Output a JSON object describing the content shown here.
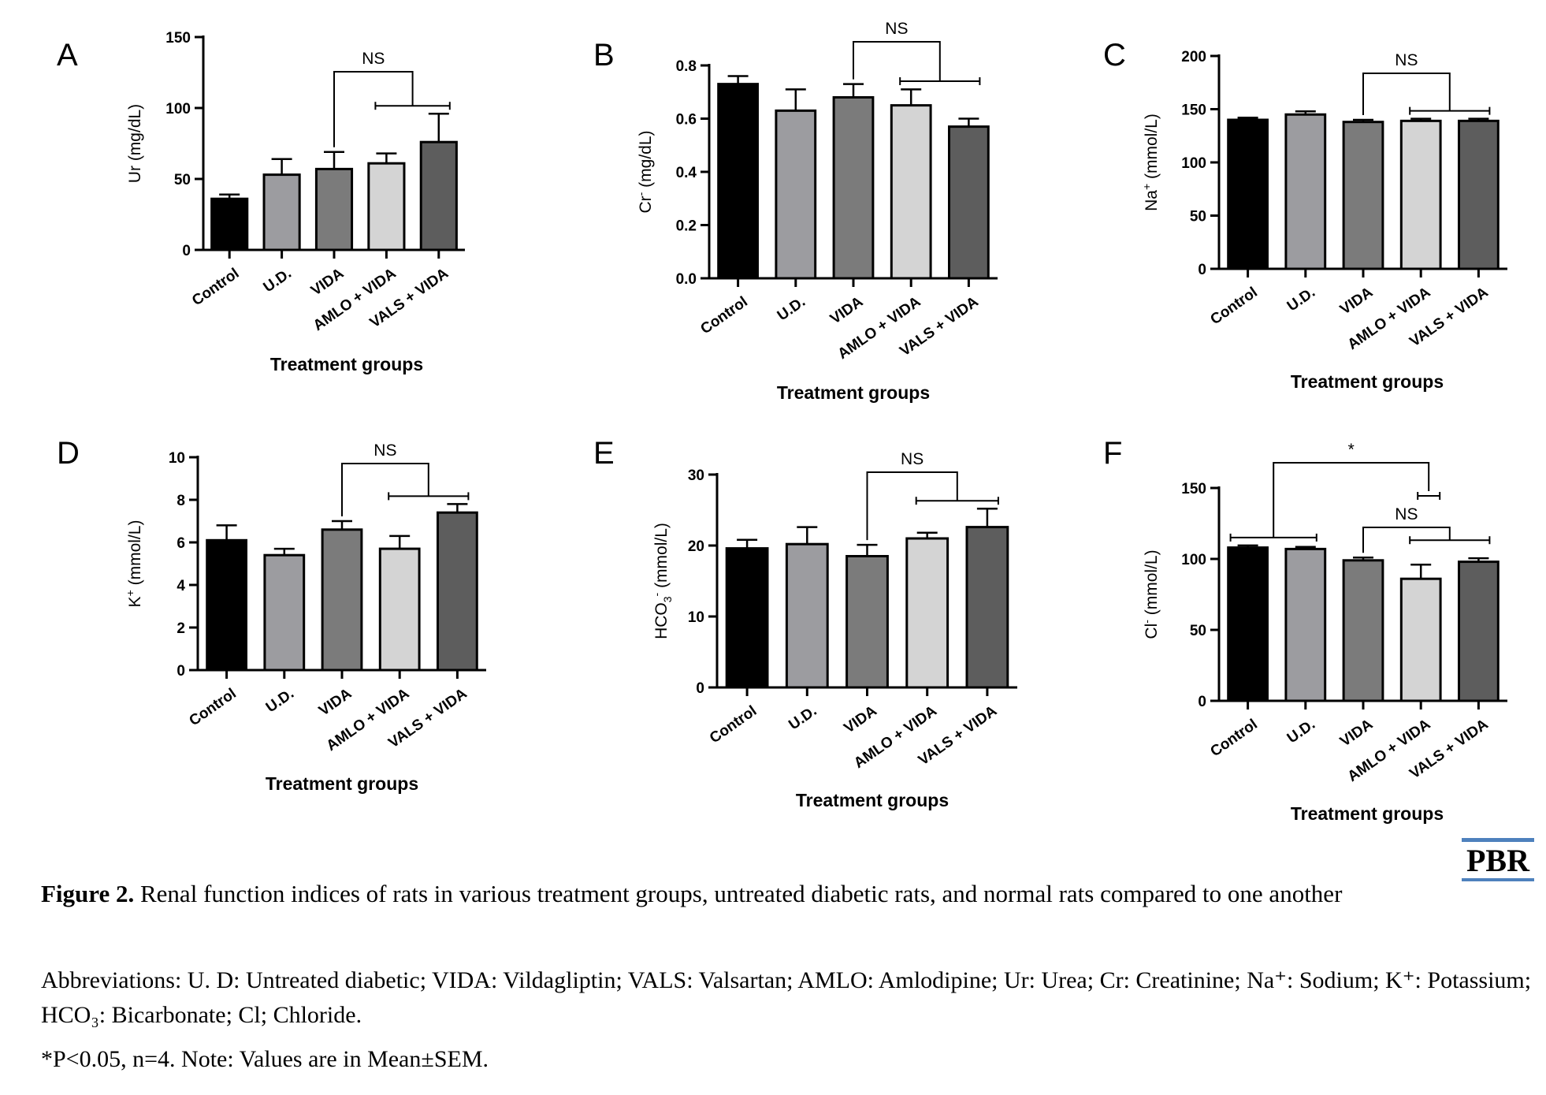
{
  "figure": {
    "caption_label": "Figure 2.",
    "caption_text": " Renal function indices of rats in various treatment groups, untreated diabetic rats, and normal rats compared to one another",
    "abbreviations": "Abbreviations: U. D: Untreated diabetic; VIDA: Vildagliptin; VALS: Valsartan; AMLO: Amlodipine; Ur: Urea; Cr: Creatinine; Na⁺: Sodium; K⁺: Potassium; HCO₃: Bicarbonate; Cl; Chloride.",
    "note": "*P<0.05, n=4. Note: Values are in Mean±SEM.",
    "logo_text": "PBR"
  },
  "colors": {
    "bars": [
      "#000000",
      "#9c9ca0",
      "#7b7b7b",
      "#d4d4d4",
      "#5d5d5d"
    ],
    "logo_accent": "#4e81bd"
  },
  "chart_data": [
    {
      "panel": "A",
      "type": "bar",
      "categories": [
        "Control",
        "U.D.",
        "VIDA",
        "AMLO + VIDA",
        "VALS + VIDA"
      ],
      "values": [
        36,
        53,
        57,
        61,
        76
      ],
      "errors": [
        3,
        11,
        12,
        7,
        20
      ],
      "ylabel": "Ur (mg/dL)",
      "xlabel": "Treatment groups",
      "ylim": [
        0,
        150
      ],
      "yticks": [
        0,
        50,
        100,
        150
      ],
      "ytick_labels": [
        "0",
        "50",
        "100",
        "150"
      ],
      "significance": [
        {
          "label": "NS",
          "from": 2,
          "to_bracket": [
            3,
            4
          ]
        }
      ]
    },
    {
      "panel": "B",
      "type": "bar",
      "categories": [
        "Control",
        "U.D.",
        "VIDA",
        "AMLO + VIDA",
        "VALS + VIDA"
      ],
      "values": [
        0.73,
        0.63,
        0.68,
        0.65,
        0.57
      ],
      "errors": [
        0.03,
        0.08,
        0.05,
        0.06,
        0.03
      ],
      "ylabel": "Cr (mg/dL)",
      "ylabel_sup": "-",
      "xlabel": "Treatment groups",
      "ylim": [
        0,
        0.8
      ],
      "yticks": [
        0,
        0.2,
        0.4,
        0.6,
        0.8
      ],
      "ytick_labels": [
        "0.0",
        "0.2",
        "0.4",
        "0.6",
        "0.8"
      ],
      "significance": [
        {
          "label": "NS",
          "from": 2,
          "to_bracket": [
            3,
            4
          ]
        }
      ]
    },
    {
      "panel": "C",
      "type": "bar",
      "categories": [
        "Control",
        "U.D.",
        "VIDA",
        "AMLO + VIDA",
        "VALS + VIDA"
      ],
      "values": [
        140,
        145,
        138,
        139,
        139
      ],
      "errors": [
        2,
        3,
        2,
        2,
        2
      ],
      "ylabel": "Na (mmol/L)",
      "ylabel_sup": "+",
      "xlabel": "Treatment groups",
      "ylim": [
        0,
        200
      ],
      "yticks": [
        0,
        50,
        100,
        150,
        200
      ],
      "ytick_labels": [
        "0",
        "50",
        "100",
        "150",
        "200"
      ],
      "significance": [
        {
          "label": "NS",
          "from": 2,
          "to_bracket": [
            3,
            4
          ]
        }
      ]
    },
    {
      "panel": "D",
      "type": "bar",
      "categories": [
        "Control",
        "U.D.",
        "VIDA",
        "AMLO + VIDA",
        "VALS + VIDA"
      ],
      "values": [
        6.1,
        5.4,
        6.6,
        5.7,
        7.4
      ],
      "errors": [
        0.7,
        0.3,
        0.4,
        0.6,
        0.4
      ],
      "ylabel": "K (mmol/L)",
      "ylabel_sup": "+",
      "xlabel": "Treatment groups",
      "ylim": [
        0,
        10
      ],
      "yticks": [
        0,
        2,
        4,
        6,
        8,
        10
      ],
      "ytick_labels": [
        "0",
        "2",
        "4",
        "6",
        "8",
        "10"
      ],
      "significance": [
        {
          "label": "NS",
          "from": 2,
          "to_bracket": [
            3,
            4
          ]
        }
      ]
    },
    {
      "panel": "E",
      "type": "bar",
      "categories": [
        "Control",
        "U.D.",
        "VIDA",
        "AMLO + VIDA",
        "VALS + VIDA"
      ],
      "values": [
        19.6,
        20.2,
        18.5,
        21,
        22.6
      ],
      "errors": [
        1.2,
        2.4,
        1.6,
        0.8,
        2.6
      ],
      "ylabel": "HCO (mmol/L)",
      "ylabel_sub": "3",
      "ylabel_sup": "-",
      "xlabel": "Treatment groups",
      "ylim": [
        0,
        30
      ],
      "yticks": [
        0,
        10,
        20,
        30
      ],
      "ytick_labels": [
        "0",
        "10",
        "20",
        "30"
      ],
      "significance": [
        {
          "label": "NS",
          "from": 2,
          "to_bracket": [
            3,
            4
          ]
        }
      ]
    },
    {
      "panel": "F",
      "type": "bar",
      "categories": [
        "Control",
        "U.D.",
        "VIDA",
        "AMLO + VIDA",
        "VALS + VIDA"
      ],
      "values": [
        108,
        107,
        99,
        86,
        98
      ],
      "errors": [
        1.5,
        1.5,
        2,
        10,
        2.5
      ],
      "ylabel": "Cl (mmol/L)",
      "ylabel_sup": "-",
      "xlabel": "Treatment groups",
      "ylim": [
        0,
        150
      ],
      "yticks": [
        0,
        50,
        100,
        150
      ],
      "ytick_labels": [
        "0",
        "50",
        "100",
        "150"
      ],
      "significance": [
        {
          "label": "*",
          "from_bracket": [
            0,
            1
          ],
          "to_bracket": [
            3,
            3
          ]
        },
        {
          "label": "NS",
          "from": 2,
          "to_bracket": [
            3,
            4
          ]
        }
      ]
    }
  ]
}
